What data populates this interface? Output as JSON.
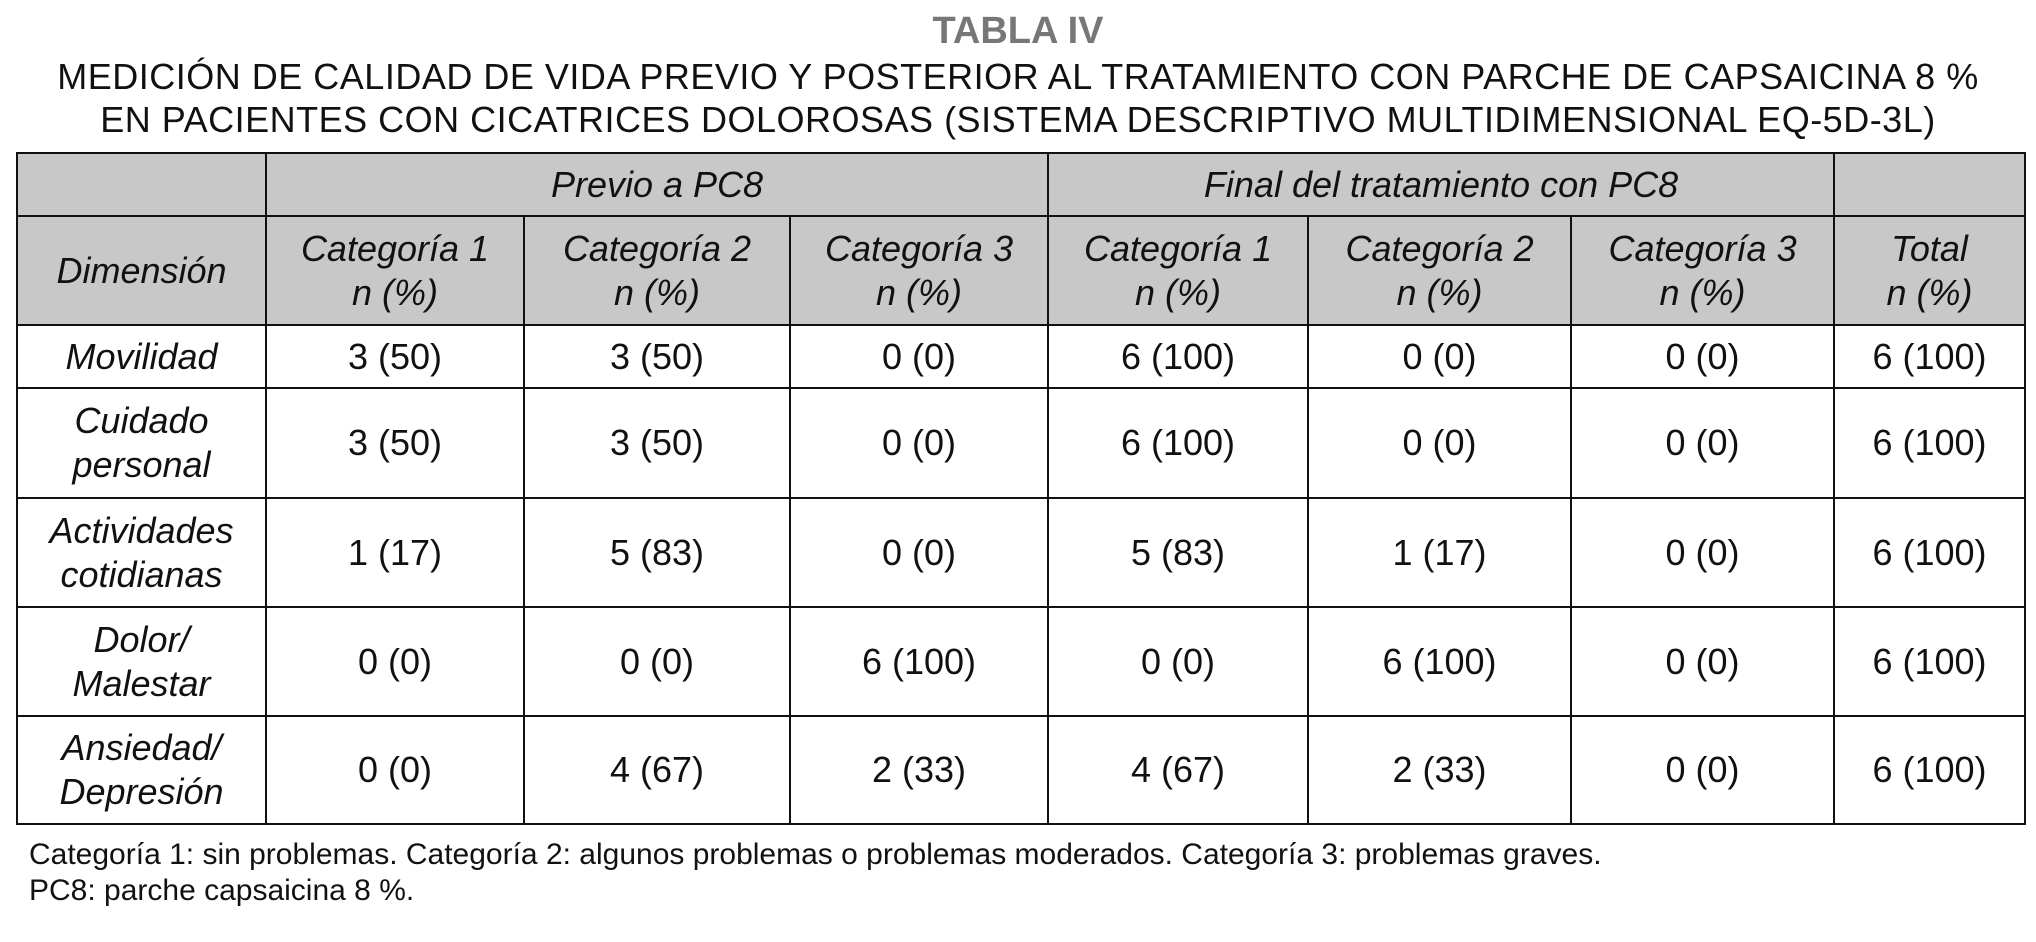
{
  "title": "TABLA IV",
  "subtitle_lines": [
    "MEDICIÓN DE CALIDAD DE VIDA PREVIO Y POSTERIOR AL TRATAMIENTO CON PARCHE DE CAPSAICINA 8 %",
    "EN PACIENTES CON CICATRICES DOLOROSAS (SISTEMA DESCRIPTIVO MULTIDIMENSIONAL EQ-5D-3L)"
  ],
  "table": {
    "group_headers": [
      "Previo a PC8",
      "Final del tratamiento con PC8"
    ],
    "columns": [
      [
        "Dimensión",
        ""
      ],
      [
        "Categoría 1",
        "n (%)"
      ],
      [
        "Categoría 2",
        "n (%)"
      ],
      [
        "Categoría 3",
        "n (%)"
      ],
      [
        "Categoría 1",
        "n (%)"
      ],
      [
        "Categoría 2",
        "n (%)"
      ],
      [
        "Categoría 3",
        "n (%)"
      ],
      [
        "Total",
        "n (%)"
      ]
    ],
    "rows": [
      {
        "dimension": [
          "Movilidad",
          ""
        ],
        "cells": [
          "3 (50)",
          "3 (50)",
          "0 (0)",
          "6 (100)",
          "0 (0)",
          "0 (0)",
          "6 (100)"
        ]
      },
      {
        "dimension": [
          "Cuidado",
          "personal"
        ],
        "cells": [
          "3 (50)",
          "3 (50)",
          "0 (0)",
          "6 (100)",
          "0 (0)",
          "0 (0)",
          "6 (100)"
        ]
      },
      {
        "dimension": [
          "Actividades",
          "cotidianas"
        ],
        "cells": [
          "1 (17)",
          "5 (83)",
          "0 (0)",
          "5 (83)",
          "1 (17)",
          "0 (0)",
          "6 (100)"
        ]
      },
      {
        "dimension": [
          "Dolor/",
          "Malestar"
        ],
        "cells": [
          "0 (0)",
          "0 (0)",
          "6 (100)",
          "0 (0)",
          "6 (100)",
          "0 (0)",
          "6 (100)"
        ]
      },
      {
        "dimension": [
          "Ansiedad/",
          "Depresión"
        ],
        "cells": [
          "0 (0)",
          "4 (67)",
          "2 (33)",
          "4 (67)",
          "2 (33)",
          "0 (0)",
          "6 (100)"
        ]
      }
    ]
  },
  "footnotes": [
    "Categoría 1: sin problemas. Categoría 2:  algunos problemas o problemas moderados. Categoría 3: problemas graves.",
    "PC8: parche capsaicina 8 %."
  ],
  "colors": {
    "header_bg": "#c8c8c8",
    "title": "#777777"
  }
}
